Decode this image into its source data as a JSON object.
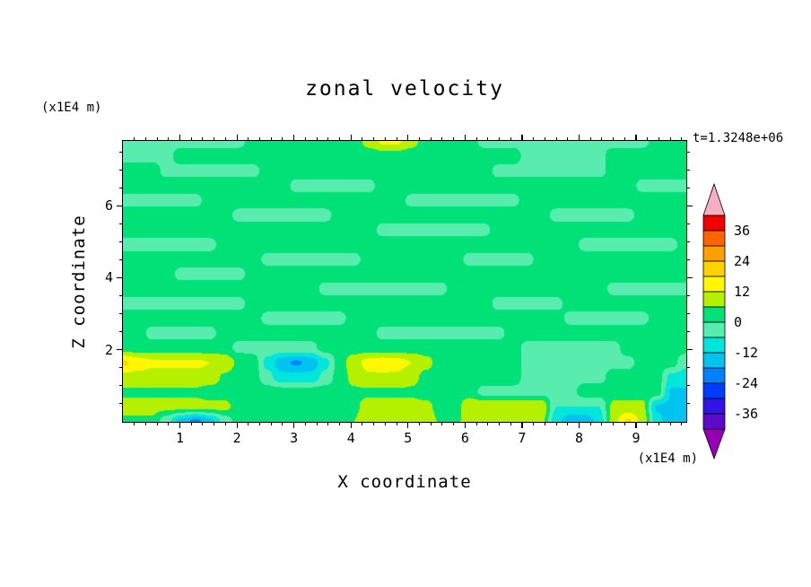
{
  "chart_data": {
    "type": "heatmap",
    "title": "zonal velocity",
    "time_annotation": "t=1.3248e+06",
    "xlabel": "X coordinate",
    "x_unit": "(x1E4 m)",
    "ylabel": "Z coordinate",
    "y_unit": "(x1E4 m)",
    "x_ticks": [
      1,
      2,
      3,
      4,
      5,
      6,
      7,
      8,
      9
    ],
    "y_ticks": [
      2,
      4,
      6
    ],
    "x_range": [
      0,
      9.88
    ],
    "y_range": [
      0,
      7.8
    ],
    "x_minor_step": 0.2,
    "y_minor_step": 0.5,
    "colorbar_labels": [
      36,
      24,
      12,
      0,
      -12,
      -24,
      -36
    ],
    "levels": [
      -42,
      -36,
      -30,
      -24,
      -18,
      -12,
      -6,
      0,
      6,
      12,
      18,
      24,
      30,
      36,
      42
    ],
    "band_colors": [
      "#9600B4",
      "#5A0AC8",
      "#3214E6",
      "#003CFF",
      "#0082FF",
      "#00C3F0",
      "#00E6DC",
      "#58EDAF",
      "#00E278",
      "#B4F000",
      "#FFF800",
      "#FFD200",
      "#FFA000",
      "#FF6400",
      "#F20000",
      "#F5AFC3"
    ],
    "grid_note": "estimated zonal velocity values on 40x20 grid, rows top (z=7.8) to bottom (z=0), cols left (x=0) to right (x=9.88)",
    "values_grid": [
      [
        -2,
        -2,
        -2,
        -2,
        -2,
        -2,
        -2,
        -2,
        -2,
        3,
        3,
        3,
        3,
        3,
        3,
        3,
        3,
        8,
        13,
        13,
        8,
        3,
        3,
        3,
        3,
        -2,
        -2,
        -2,
        -2,
        -2,
        -2,
        -2,
        -2,
        -2,
        -2,
        -2,
        -2,
        3,
        3,
        3
      ],
      [
        -2,
        -2,
        -2,
        -2,
        3,
        3,
        3,
        3,
        3,
        3,
        3,
        3,
        3,
        3,
        3,
        3,
        3,
        3,
        3,
        3,
        3,
        3,
        3,
        3,
        3,
        3,
        3,
        3,
        -2,
        -2,
        -2,
        -2,
        -2,
        -2,
        3,
        3,
        3,
        3,
        3,
        3
      ],
      [
        3,
        3,
        3,
        -2,
        -2,
        -2,
        -2,
        -2,
        -2,
        -2,
        3,
        3,
        3,
        3,
        3,
        3,
        3,
        3,
        3,
        3,
        3,
        3,
        3,
        3,
        3,
        3,
        -2,
        -2,
        -2,
        -2,
        -2,
        -2,
        -2,
        -2,
        3,
        3,
        3,
        3,
        3,
        3
      ],
      [
        3,
        3,
        3,
        3,
        3,
        3,
        3,
        3,
        3,
        3,
        3,
        3,
        -2,
        -2,
        -2,
        -2,
        -2,
        -2,
        3,
        3,
        3,
        3,
        3,
        3,
        3,
        3,
        3,
        3,
        3,
        3,
        3,
        3,
        3,
        3,
        3,
        3,
        -2,
        -2,
        -2,
        -2
      ],
      [
        -2,
        -2,
        -2,
        -2,
        -2,
        -2,
        3,
        3,
        3,
        3,
        3,
        3,
        3,
        3,
        3,
        3,
        3,
        3,
        3,
        3,
        -2,
        -2,
        -2,
        -2,
        -2,
        -2,
        -2,
        -2,
        3,
        3,
        3,
        3,
        3,
        3,
        3,
        3,
        3,
        3,
        3,
        3
      ],
      [
        3,
        3,
        3,
        3,
        3,
        3,
        3,
        3,
        -2,
        -2,
        -2,
        -2,
        -2,
        -2,
        -2,
        3,
        3,
        3,
        3,
        3,
        3,
        3,
        3,
        3,
        3,
        3,
        3,
        3,
        3,
        3,
        -2,
        -2,
        -2,
        -2,
        -2,
        -2,
        3,
        3,
        3,
        3
      ],
      [
        3,
        3,
        3,
        3,
        3,
        3,
        3,
        3,
        3,
        3,
        3,
        3,
        3,
        3,
        3,
        3,
        3,
        3,
        -2,
        -2,
        -2,
        -2,
        -2,
        -2,
        -2,
        -2,
        3,
        3,
        3,
        3,
        3,
        3,
        3,
        3,
        3,
        3,
        3,
        3,
        3,
        3
      ],
      [
        -2,
        -2,
        -2,
        -2,
        -2,
        -2,
        -2,
        3,
        3,
        3,
        3,
        3,
        3,
        3,
        3,
        3,
        3,
        3,
        3,
        3,
        3,
        3,
        3,
        3,
        3,
        3,
        3,
        3,
        3,
        3,
        3,
        3,
        -2,
        -2,
        -2,
        -2,
        -2,
        -2,
        -2,
        3
      ],
      [
        3,
        3,
        3,
        3,
        3,
        3,
        3,
        3,
        3,
        3,
        -2,
        -2,
        -2,
        -2,
        -2,
        -2,
        -2,
        3,
        3,
        3,
        3,
        3,
        3,
        3,
        -2,
        -2,
        -2,
        -2,
        -2,
        3,
        3,
        3,
        3,
        3,
        3,
        3,
        3,
        3,
        3,
        3
      ],
      [
        3,
        3,
        3,
        3,
        -2,
        -2,
        -2,
        -2,
        -2,
        3,
        3,
        3,
        3,
        3,
        3,
        3,
        3,
        3,
        3,
        3,
        3,
        3,
        3,
        3,
        3,
        3,
        3,
        3,
        3,
        3,
        3,
        3,
        3,
        3,
        3,
        3,
        3,
        3,
        3,
        3
      ],
      [
        3,
        3,
        3,
        3,
        3,
        3,
        3,
        3,
        3,
        3,
        3,
        3,
        3,
        3,
        -2,
        -2,
        -2,
        -2,
        -2,
        -2,
        -2,
        -2,
        -2,
        3,
        3,
        3,
        3,
        3,
        3,
        3,
        3,
        3,
        3,
        3,
        -2,
        -2,
        -2,
        -2,
        -2,
        -2
      ],
      [
        -2,
        -2,
        -2,
        -2,
        -2,
        -2,
        -2,
        -2,
        -2,
        3,
        3,
        3,
        3,
        3,
        3,
        3,
        3,
        3,
        3,
        3,
        3,
        3,
        3,
        3,
        3,
        3,
        -2,
        -2,
        -2,
        -2,
        -2,
        3,
        3,
        3,
        3,
        3,
        3,
        3,
        3,
        3
      ],
      [
        3,
        3,
        3,
        3,
        3,
        3,
        3,
        3,
        3,
        3,
        -2,
        -2,
        -2,
        -2,
        -2,
        -2,
        3,
        3,
        3,
        3,
        3,
        3,
        3,
        3,
        3,
        3,
        3,
        3,
        3,
        3,
        3,
        -2,
        -2,
        -2,
        -2,
        -2,
        -2,
        3,
        3,
        3
      ],
      [
        3,
        3,
        -2,
        -2,
        -2,
        -2,
        -2,
        3,
        3,
        3,
        3,
        3,
        3,
        3,
        3,
        3,
        3,
        3,
        -2,
        -2,
        -2,
        -2,
        -2,
        -2,
        -2,
        -2,
        -2,
        3,
        3,
        3,
        3,
        3,
        3,
        3,
        3,
        3,
        3,
        3,
        3,
        3
      ],
      [
        3,
        3,
        3,
        3,
        3,
        3,
        3,
        3,
        -2,
        -2,
        -2,
        -2,
        -2,
        -2,
        3,
        3,
        3,
        3,
        3,
        3,
        3,
        3,
        3,
        3,
        3,
        3,
        3,
        3,
        -2,
        -2,
        -2,
        -2,
        -2,
        -2,
        -2,
        3,
        3,
        3,
        3,
        3
      ],
      [
        19,
        15,
        13,
        13,
        13,
        13,
        12,
        10,
        5,
        3,
        -8,
        -16,
        -19,
        -16,
        -8,
        3,
        10,
        14,
        15,
        14,
        12,
        8,
        3,
        3,
        3,
        3,
        3,
        3,
        -2,
        -2,
        -2,
        -2,
        -2,
        -2,
        -2,
        -2,
        3,
        3,
        3,
        -5
      ],
      [
        10,
        10,
        10,
        10,
        10,
        10,
        10,
        5,
        3,
        3,
        -4,
        -10,
        -10,
        -10,
        -4,
        3,
        8,
        11,
        11,
        11,
        8,
        4,
        3,
        3,
        3,
        3,
        3,
        3,
        -2,
        -2,
        -2,
        -2,
        -2,
        -2,
        3,
        3,
        3,
        3,
        -8,
        -8
      ],
      [
        5,
        5,
        5,
        5,
        5,
        5,
        3,
        3,
        3,
        3,
        3,
        3,
        3,
        3,
        3,
        3,
        5,
        5,
        5,
        5,
        5,
        3,
        3,
        3,
        3,
        -2,
        -2,
        -2,
        -2,
        -2,
        -2,
        -2,
        3,
        3,
        3,
        3,
        3,
        3,
        -13,
        -13
      ],
      [
        8,
        8,
        8,
        8,
        8,
        8,
        8,
        8,
        3,
        3,
        3,
        3,
        3,
        3,
        5,
        5,
        5,
        8,
        8,
        8,
        8,
        8,
        3,
        3,
        11,
        11,
        11,
        11,
        11,
        11,
        -6,
        -6,
        -6,
        -6,
        8,
        8,
        8,
        -13,
        -13,
        -13
      ],
      [
        5,
        5,
        5,
        -4,
        -14,
        -20,
        -14,
        -4,
        3,
        3,
        3,
        3,
        3,
        3,
        6,
        6,
        6,
        10,
        10,
        10,
        10,
        10,
        5,
        5,
        8,
        8,
        8,
        8,
        8,
        8,
        -10,
        -16,
        -16,
        -10,
        10,
        19,
        10,
        -10,
        -16,
        -16
      ]
    ]
  }
}
